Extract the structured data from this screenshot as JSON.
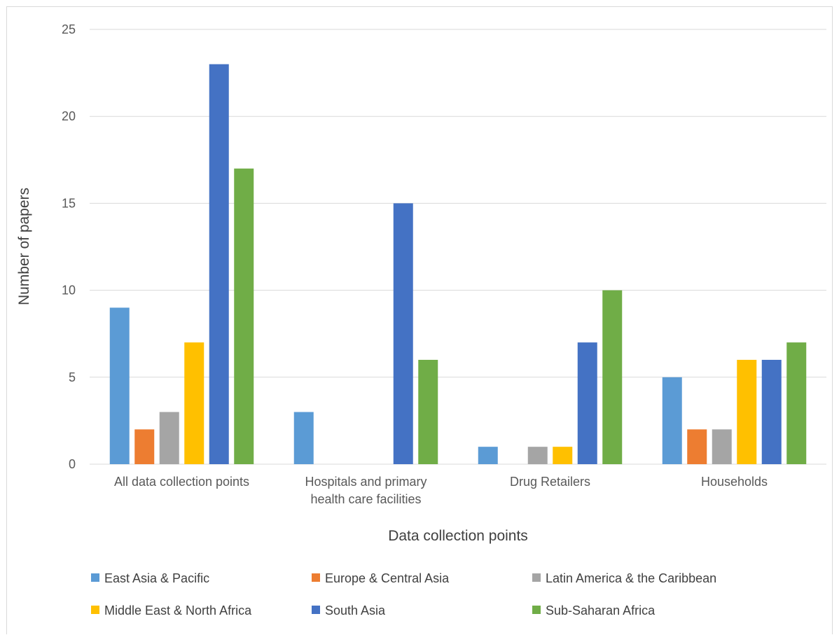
{
  "chart_data": {
    "type": "bar",
    "title": "",
    "xlabel": "Data collection points",
    "ylabel": "Number of  papers",
    "ylim": [
      0,
      25
    ],
    "yticks": [
      "0",
      "5",
      "10",
      "15",
      "20",
      "25"
    ],
    "grid": true,
    "legend_position": "bottom",
    "categories": [
      [
        "All data collection points"
      ],
      [
        "Hospitals and primary",
        "health care facilities"
      ],
      [
        "Drug Retailers"
      ],
      [
        "Households"
      ]
    ],
    "series": [
      {
        "name": "East Asia & Pacific",
        "color": "#5b9bd5",
        "values": [
          9,
          3,
          1,
          5
        ]
      },
      {
        "name": "Europe & Central Asia",
        "color": "#ed7d31",
        "values": [
          2,
          0,
          0,
          2
        ]
      },
      {
        "name": "Latin America & the Caribbean",
        "color": "#a5a5a5",
        "values": [
          3,
          0,
          1,
          2
        ]
      },
      {
        "name": "Middle East & North Africa",
        "color": "#ffc000",
        "values": [
          7,
          0,
          1,
          6
        ]
      },
      {
        "name": "South Asia",
        "color": "#4472c4",
        "values": [
          23,
          15,
          7,
          6
        ]
      },
      {
        "name": "Sub-Saharan Africa",
        "color": "#70ad47",
        "values": [
          17,
          6,
          10,
          7
        ]
      }
    ]
  }
}
